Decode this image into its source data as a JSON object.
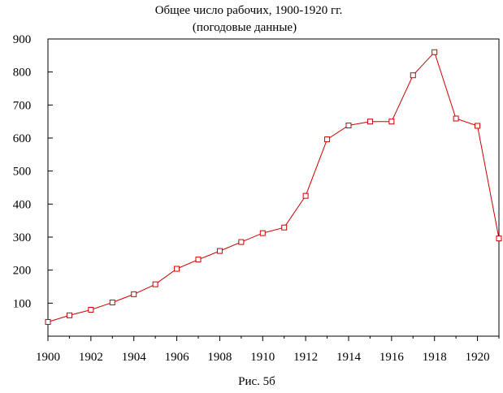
{
  "chart_data": {
    "type": "line",
    "title": "Общее число рабочих, 1900-1920 гг.",
    "subtitle": "(погодовые данные)",
    "caption": "Рис. 5б",
    "xlabel": "",
    "ylabel": "",
    "xlim": [
      1900,
      1921
    ],
    "ylim": [
      0,
      900
    ],
    "x_ticks": [
      1900,
      1902,
      1904,
      1906,
      1908,
      1910,
      1912,
      1914,
      1916,
      1918,
      1920
    ],
    "x_tick_labels": [
      "1900",
      "1902",
      "1904",
      "1906",
      "1908",
      "1910",
      "1912",
      "1914",
      "1916",
      "1918",
      "1920"
    ],
    "y_ticks": [
      100,
      200,
      300,
      400,
      500,
      600,
      700,
      800,
      900
    ],
    "y_tick_labels": [
      "100",
      "200",
      "300",
      "400",
      "500",
      "600",
      "700",
      "800",
      "900"
    ],
    "grid": false,
    "series": [
      {
        "color": "#cc0000",
        "marker": "square",
        "x": [
          1900,
          1901,
          1902,
          1903,
          1904,
          1905,
          1906,
          1907,
          1908,
          1909,
          1910,
          1911,
          1912,
          1913,
          1914,
          1915,
          1916,
          1917,
          1918,
          1919,
          1920,
          1921
        ],
        "values": [
          43,
          63,
          80,
          102,
          127,
          157,
          204,
          232,
          258,
          285,
          312,
          329,
          425,
          596,
          638,
          650,
          650,
          790,
          860,
          659,
          637,
          296
        ]
      }
    ]
  }
}
